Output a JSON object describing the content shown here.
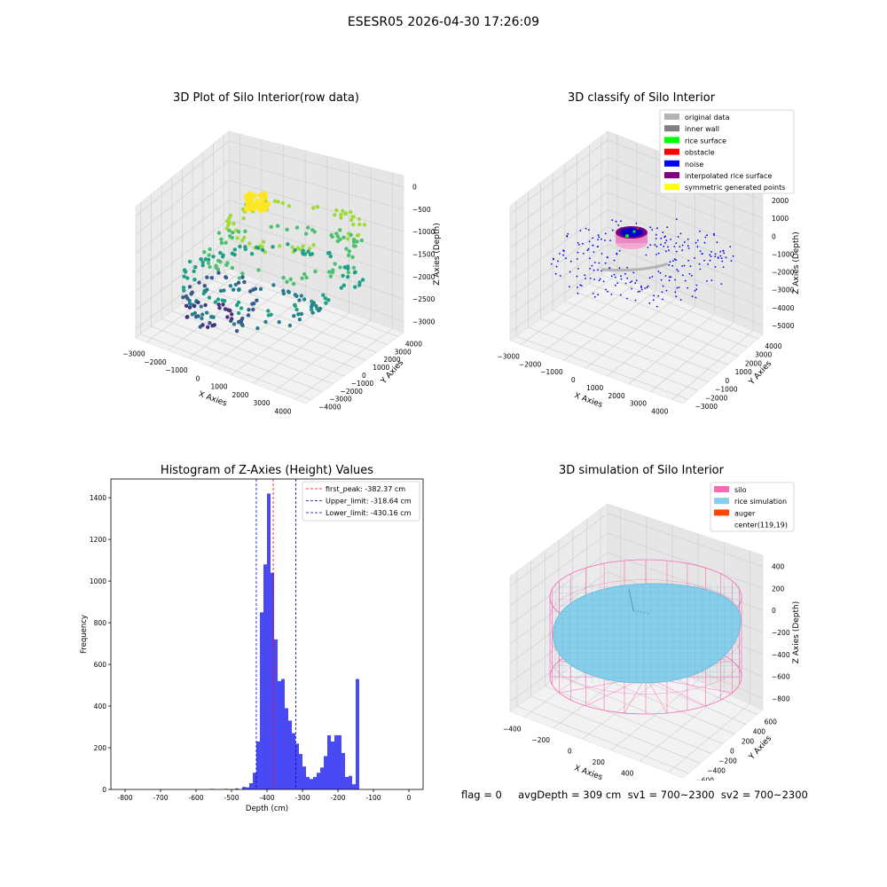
{
  "suptitle": "ESESR05 2026-04-30 17:26:09",
  "footer": "flag = 0     avgDepth = 309 cm  sv1 = 700~2300  sv2 = 700~2300",
  "colors": {
    "hist_bar": "#4a4af5",
    "first_peak": "#ff0000",
    "limits": "#0000cc",
    "silo": "#ff69b4",
    "rice_sim": "#87ceeb",
    "auger": "#ff4500",
    "noise": "#0000ff",
    "original": "#b4b4b4",
    "inner_wall": "#808080",
    "rice_surface": "#00ff00",
    "obstacle": "#ff0000",
    "interp": "#800080",
    "symmetric": "#ffff00"
  },
  "chart_data": [
    {
      "type": "scatter",
      "title": "3D Plot of Silo Interior(row data)",
      "xlabel": "X Axies",
      "ylabel": "Y Axies",
      "zlabel": "Z Axies (Depth)",
      "xticks": [
        "−3000",
        "−2000",
        "−1000",
        "0",
        "1000",
        "2000",
        "3000",
        "4000"
      ],
      "yticks": [
        "−4000",
        "−3000",
        "−2000",
        "−1000",
        "0",
        "1000",
        "2000",
        "3000",
        "4000"
      ],
      "zticks": [
        "0",
        "−500",
        "−1000",
        "−1500",
        "−2000",
        "−2500",
        "−3000"
      ],
      "xlim": [
        -3000,
        4000
      ],
      "ylim": [
        -4000,
        4000
      ],
      "zlim": [
        -3300,
        0
      ]
    },
    {
      "type": "scatter",
      "title": "3D classify of Silo Interior",
      "xlabel": "X Axies",
      "ylabel": "Y Axies",
      "zlabel": "Z Axies (Depth)",
      "xticks": [
        "−3000",
        "−2000",
        "−1000",
        "0",
        "1000",
        "2000",
        "3000",
        "4000"
      ],
      "yticks": [
        "−3000",
        "−2000",
        "−1000",
        "0",
        "1000",
        "2000",
        "3000",
        "4000"
      ],
      "zticks": [
        "2000",
        "1000",
        "0",
        "−1000",
        "−2000",
        "−3000",
        "−4000",
        "−5000"
      ],
      "legend": [
        "original data",
        "inner wall",
        "rice surface",
        "obstacle",
        "noise",
        "interpolated rice surface",
        "symmetric generated points"
      ],
      "legend_colors": [
        "#b4b4b4",
        "#808080",
        "#00ff00",
        "#ff0000",
        "#0000ff",
        "#800080",
        "#ffff00"
      ],
      "legend_position": "top-right"
    },
    {
      "type": "bar",
      "title": "Histogram of Z-Axies (Height) Values",
      "xlabel": "Depth (cm)",
      "ylabel": "Frequency",
      "xlim": [
        -840,
        40
      ],
      "ylim": [
        0,
        1490
      ],
      "xticks": [
        -800,
        -700,
        -600,
        -500,
        -400,
        -300,
        -200,
        -100,
        0
      ],
      "yticks": [
        0,
        200,
        400,
        600,
        800,
        1000,
        1200,
        1400
      ],
      "bin_width": 10,
      "bins": [
        [
          -560,
          3
        ],
        [
          -520,
          3
        ],
        [
          -490,
          5
        ],
        [
          -470,
          12
        ],
        [
          -460,
          10
        ],
        [
          -450,
          30
        ],
        [
          -440,
          80
        ],
        [
          -430,
          230
        ],
        [
          -420,
          850
        ],
        [
          -410,
          1080
        ],
        [
          -400,
          1420
        ],
        [
          -390,
          1040
        ],
        [
          -380,
          720
        ],
        [
          -370,
          520
        ],
        [
          -360,
          530
        ],
        [
          -350,
          390
        ],
        [
          -340,
          330
        ],
        [
          -330,
          270
        ],
        [
          -320,
          220
        ],
        [
          -310,
          170
        ],
        [
          -300,
          110
        ],
        [
          -290,
          60
        ],
        [
          -280,
          50
        ],
        [
          -270,
          60
        ],
        [
          -260,
          80
        ],
        [
          -250,
          105
        ],
        [
          -240,
          160
        ],
        [
          -230,
          260
        ],
        [
          -220,
          230
        ],
        [
          -210,
          260
        ],
        [
          -200,
          260
        ],
        [
          -190,
          175
        ],
        [
          -180,
          60
        ],
        [
          -170,
          65
        ],
        [
          -160,
          25
        ],
        [
          -150,
          530
        ]
      ],
      "lines": [
        {
          "name": "first_peak: -382.37 cm",
          "x": -382.37,
          "style": "red-dashed"
        },
        {
          "name": "Upper_limit: -318.64 cm",
          "x": -318.64,
          "style": "blue-dashed"
        },
        {
          "name": "Lower_limit: -430.16 cm",
          "x": -430.16,
          "style": "blue-dashed"
        }
      ],
      "legend_position": "top-right"
    },
    {
      "type": "surface",
      "title": "3D simulation of Silo Interior",
      "xlabel": "X Axies",
      "ylabel": "Y Axies",
      "zlabel": "Z Axies (Depth)",
      "xticks": [
        "−400",
        "−200",
        "0",
        "200",
        "400",
        "600"
      ],
      "yticks": [
        "−600",
        "−400",
        "−200",
        "0",
        "200",
        "400",
        "600"
      ],
      "zticks": [
        "400",
        "200",
        "0",
        "−200",
        "−400",
        "−600",
        "−800"
      ],
      "legend": [
        "silo",
        "rice simulation",
        "auger",
        "center(119,19)"
      ],
      "legend_colors": [
        "#ff69b4",
        "#87ceeb",
        "#ff4500",
        "#ffffff"
      ],
      "legend_position": "top-right"
    }
  ]
}
